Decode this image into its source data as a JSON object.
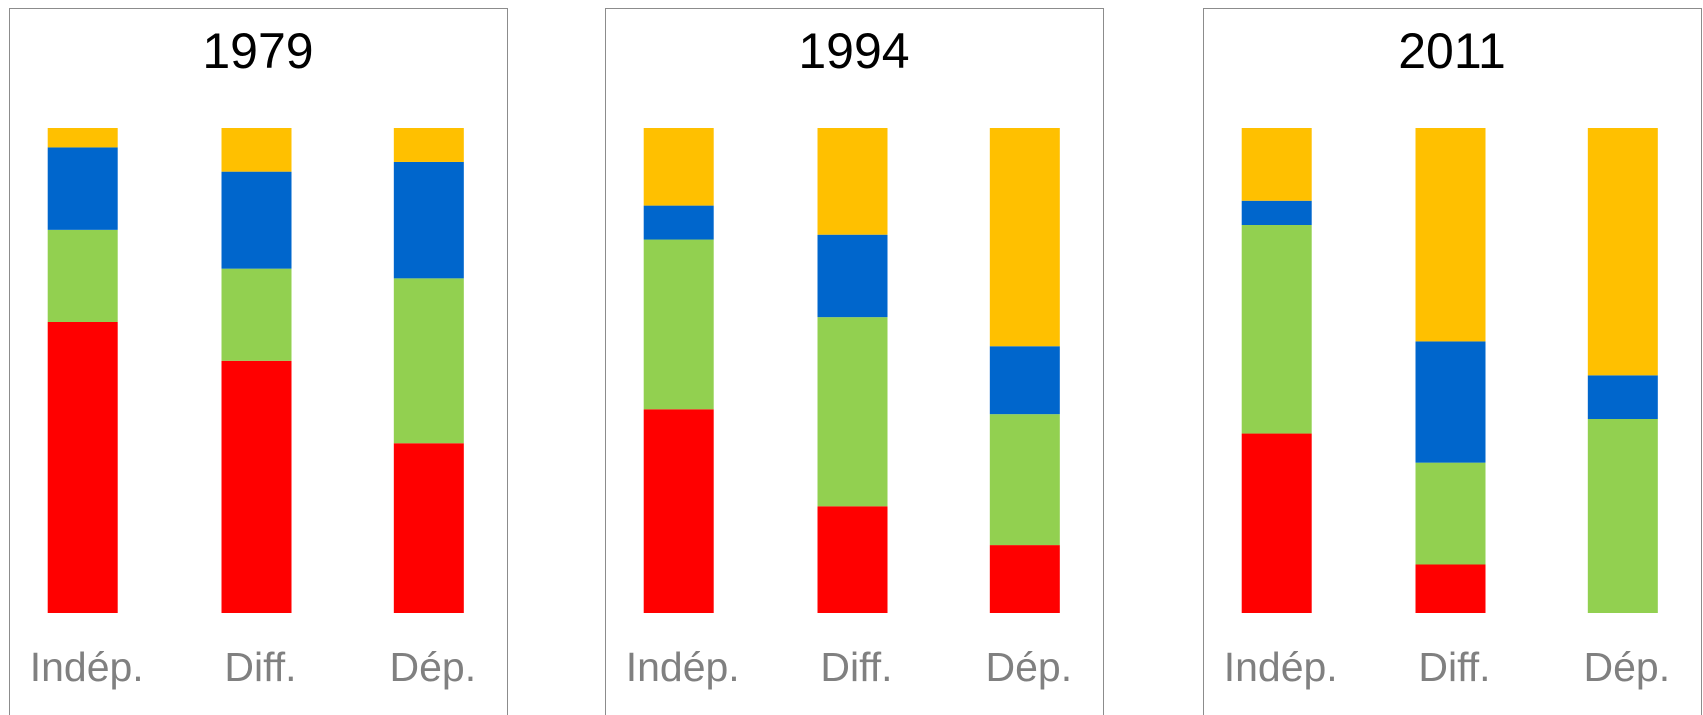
{
  "chart_data": [
    {
      "type": "bar",
      "stacked": true,
      "title": "1979",
      "categories": [
        "Indép.",
        "Diff.",
        "Dép."
      ],
      "ylim": [
        0,
        100
      ],
      "series": [
        {
          "color": "#ff0000",
          "values": [
            60,
            52,
            35
          ]
        },
        {
          "color": "#92d050",
          "values": [
            19,
            19,
            34
          ]
        },
        {
          "color": "#0066cc",
          "values": [
            17,
            20,
            24
          ]
        },
        {
          "color": "#ffc000",
          "values": [
            4,
            9,
            7
          ]
        }
      ]
    },
    {
      "type": "bar",
      "stacked": true,
      "title": "1994",
      "categories": [
        "Indép.",
        "Diff.",
        "Dép."
      ],
      "ylim": [
        0,
        100
      ],
      "series": [
        {
          "color": "#ff0000",
          "values": [
            42,
            22,
            14
          ]
        },
        {
          "color": "#92d050",
          "values": [
            35,
            39,
            27
          ]
        },
        {
          "color": "#0066cc",
          "values": [
            7,
            17,
            14
          ]
        },
        {
          "color": "#ffc000",
          "values": [
            16,
            22,
            45
          ]
        }
      ]
    },
    {
      "type": "bar",
      "stacked": true,
      "title": "2011",
      "categories": [
        "Indép.",
        "Diff.",
        "Dép."
      ],
      "ylim": [
        0,
        100
      ],
      "series": [
        {
          "color": "#ff0000",
          "values": [
            37,
            10,
            0
          ]
        },
        {
          "color": "#92d050",
          "values": [
            43,
            21,
            40
          ]
        },
        {
          "color": "#0066cc",
          "values": [
            5,
            25,
            9
          ]
        },
        {
          "color": "#ffc000",
          "values": [
            15,
            44,
            51
          ]
        }
      ]
    }
  ]
}
